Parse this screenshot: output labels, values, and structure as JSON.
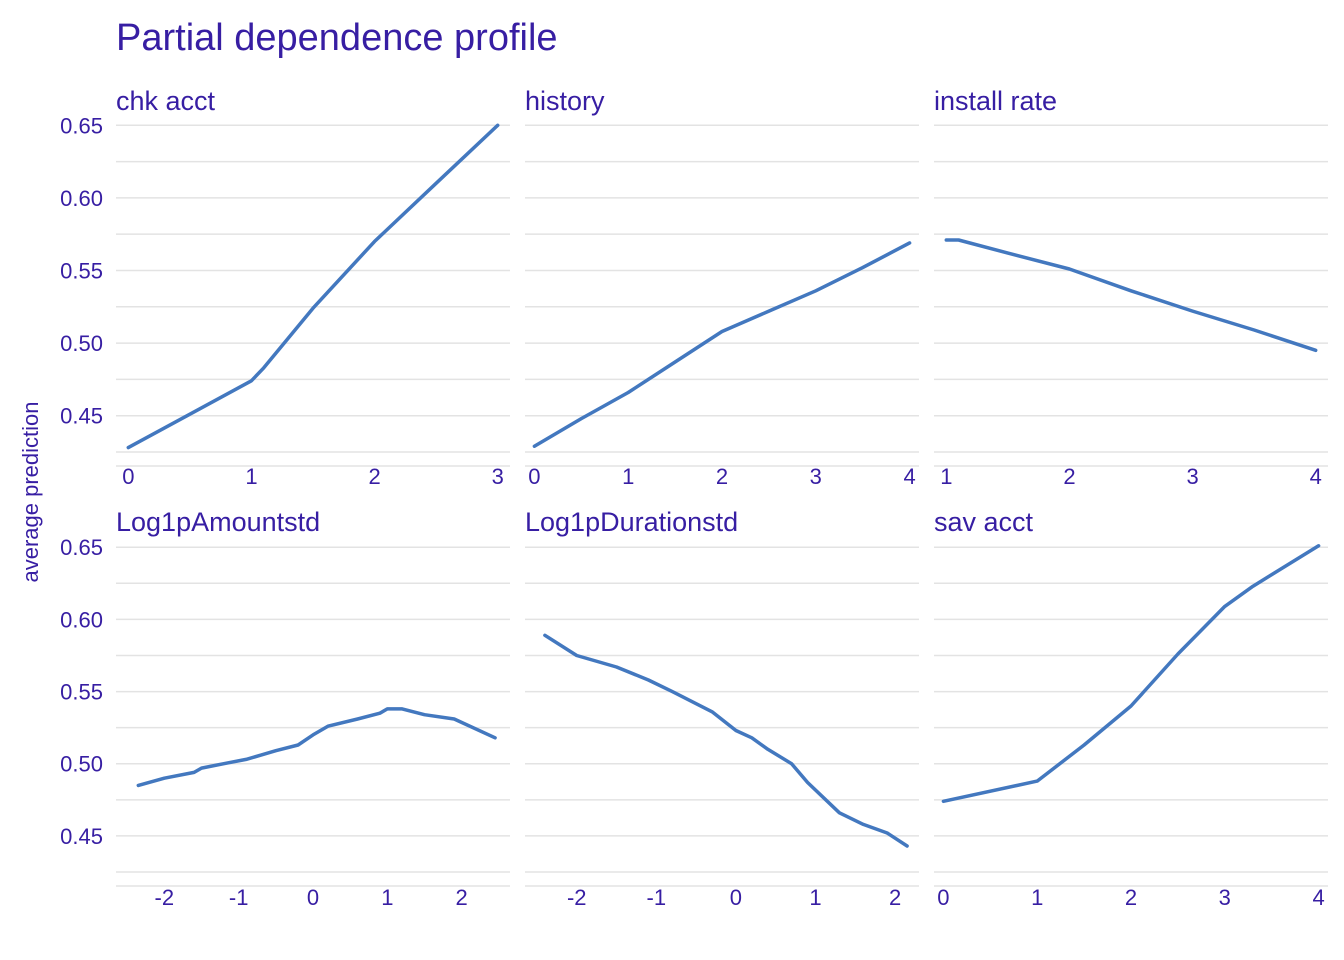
{
  "chart_data": {
    "type": "line",
    "title": "Partial dependence profile",
    "ylabel": "average prediction",
    "ylim": [
      0.425,
      0.655
    ],
    "yticks": [
      0.45,
      0.5,
      0.55,
      0.6,
      0.65
    ],
    "ytick_labels": [
      "0.45",
      "0.50",
      "0.55",
      "0.60",
      "0.65"
    ],
    "grid": true,
    "colors": {
      "text": "#371ea3",
      "line": "#4378bf",
      "grid": "#e3e3e3"
    },
    "facets": [
      {
        "name": "chk_acct",
        "label": "chk  acct",
        "xlim": [
          -0.1,
          3.1
        ],
        "xticks": [
          0,
          1,
          2,
          3
        ],
        "xtick_labels": [
          "0",
          "1",
          "2",
          "3"
        ],
        "x": [
          0,
          0.5,
          1,
          1.1,
          1.5,
          2,
          2.5,
          3
        ],
        "y": [
          0.428,
          0.451,
          0.474,
          0.483,
          0.524,
          0.57,
          0.61,
          0.65
        ]
      },
      {
        "name": "history",
        "label": "history",
        "xlim": [
          -0.1,
          4.1
        ],
        "xticks": [
          0,
          1,
          2,
          3,
          4
        ],
        "xtick_labels": [
          "0",
          "1",
          "2",
          "3",
          "4"
        ],
        "x": [
          0,
          0.5,
          1,
          1.5,
          2,
          2.5,
          3,
          3.5,
          4
        ],
        "y": [
          0.429,
          0.448,
          0.466,
          0.487,
          0.508,
          0.522,
          0.536,
          0.552,
          0.569
        ]
      },
      {
        "name": "install_rate",
        "label": "install  rate",
        "xlim": [
          0.9,
          4.1
        ],
        "xticks": [
          1,
          2,
          3,
          4
        ],
        "xtick_labels": [
          "1",
          "2",
          "3",
          "4"
        ],
        "x": [
          1,
          1.1,
          1.5,
          2,
          2.5,
          3,
          3.5,
          4
        ],
        "y": [
          0.571,
          0.571,
          0.562,
          0.551,
          0.536,
          0.522,
          0.509,
          0.495
        ]
      },
      {
        "name": "Log1pAmountstd",
        "label": "Log1pAmountstd",
        "xlim": [
          -2.65,
          2.65
        ],
        "xticks": [
          -2,
          -1,
          0,
          1,
          2
        ],
        "xtick_labels": [
          "-2",
          "-1",
          "0",
          "1",
          "2"
        ],
        "x": [
          -2.35,
          -2.0,
          -1.6,
          -1.5,
          -1.2,
          -0.9,
          -0.7,
          -0.5,
          -0.2,
          0.0,
          0.2,
          0.6,
          0.9,
          1.0,
          1.2,
          1.5,
          1.9,
          2.45
        ],
        "y": [
          0.485,
          0.49,
          0.494,
          0.497,
          0.5,
          0.503,
          0.506,
          0.509,
          0.513,
          0.52,
          0.526,
          0.531,
          0.535,
          0.538,
          0.538,
          0.534,
          0.531,
          0.518
        ]
      },
      {
        "name": "Log1pDurationstd",
        "label": "Log1pDurationstd",
        "xlim": [
          -2.65,
          2.3
        ],
        "xticks": [
          -2,
          -1,
          0,
          1,
          2
        ],
        "xtick_labels": [
          "-2",
          "-1",
          "0",
          "1",
          "2"
        ],
        "x": [
          -2.4,
          -2.0,
          -1.5,
          -1.1,
          -0.8,
          -0.3,
          0.0,
          0.2,
          0.4,
          0.7,
          0.9,
          1.3,
          1.6,
          1.9,
          2.15
        ],
        "y": [
          0.589,
          0.575,
          0.567,
          0.558,
          0.55,
          0.536,
          0.523,
          0.518,
          0.51,
          0.5,
          0.487,
          0.466,
          0.458,
          0.452,
          0.443
        ]
      },
      {
        "name": "sav_acct",
        "label": "sav  acct",
        "xlim": [
          -0.1,
          4.1
        ],
        "xticks": [
          0,
          1,
          2,
          3,
          4
        ],
        "xtick_labels": [
          "0",
          "1",
          "2",
          "3",
          "4"
        ],
        "x": [
          0,
          1,
          1.5,
          2,
          2.5,
          3,
          3.3,
          4
        ],
        "y": [
          0.474,
          0.488,
          0.513,
          0.54,
          0.576,
          0.609,
          0.623,
          0.651
        ]
      }
    ]
  }
}
